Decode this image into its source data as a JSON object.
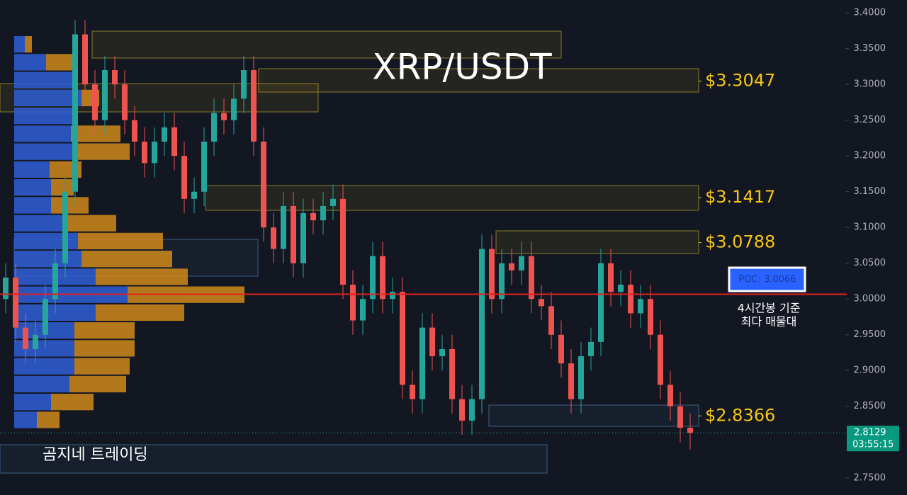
{
  "chart_data": {
    "type": "candlestick",
    "title": "XRP/USDT",
    "ylim": [
      2.726,
      3.418
    ],
    "yticks": [
      {
        "value": 3.4,
        "label": "3.4000"
      },
      {
        "value": 3.35,
        "label": "3.3500"
      },
      {
        "value": 3.3,
        "label": "3.3000"
      },
      {
        "value": 3.25,
        "label": "3.2500"
      },
      {
        "value": 3.2,
        "label": "3.2000"
      },
      {
        "value": 3.15,
        "label": "3.1500"
      },
      {
        "value": 3.1,
        "label": "3.1000"
      },
      {
        "value": 3.05,
        "label": "3.0500"
      },
      {
        "value": 3,
        "label": "3.0000"
      },
      {
        "value": 2.95,
        "label": "2.9500"
      },
      {
        "value": 2.9,
        "label": "2.9000"
      },
      {
        "value": 2.85,
        "label": "2.8500"
      },
      {
        "value": 2.75,
        "label": "2.7500"
      }
    ],
    "up_color": "#26a69a",
    "down_color": "#ef5350",
    "open": [
      3.0,
      3.03,
      2.96,
      2.93,
      2.95,
      3.0,
      3.05,
      3.15,
      3.37,
      3.3,
      3.25,
      3.32,
      3.3,
      3.25,
      3.22,
      3.19,
      3.22,
      3.24,
      3.2,
      3.14,
      3.15,
      3.22,
      3.26,
      3.25,
      3.28,
      3.32,
      3.22,
      3.1,
      3.07,
      3.13,
      3.05,
      3.12,
      3.11,
      3.13,
      3.14,
      3.02,
      2.97,
      3.0,
      3.06,
      3.0,
      3.01,
      2.88,
      2.86,
      2.96,
      2.92,
      2.93,
      2.86,
      2.83,
      2.86,
      3.07,
      3.0,
      3.05,
      3.04,
      3.06,
      3.0,
      2.99,
      2.95,
      2.91,
      2.86,
      2.92,
      2.94,
      3.05,
      3.01,
      3.02,
      2.98,
      3.0,
      2.95,
      2.88,
      2.85,
      2.82
    ],
    "high": [
      3.05,
      3.05,
      2.98,
      2.97,
      3.02,
      3.07,
      3.17,
      3.39,
      3.39,
      3.32,
      3.34,
      3.34,
      3.32,
      3.27,
      3.24,
      3.24,
      3.26,
      3.26,
      3.22,
      3.17,
      3.24,
      3.28,
      3.28,
      3.3,
      3.34,
      3.34,
      3.24,
      3.12,
      3.15,
      3.15,
      3.14,
      3.14,
      3.15,
      3.16,
      3.16,
      3.04,
      3.02,
      3.08,
      3.08,
      3.03,
      3.03,
      2.9,
      2.98,
      2.98,
      2.95,
      2.95,
      2.88,
      2.88,
      3.09,
      3.09,
      3.07,
      3.07,
      3.08,
      3.08,
      3.02,
      3.01,
      2.97,
      2.93,
      2.94,
      2.96,
      3.07,
      3.07,
      3.04,
      3.04,
      3.02,
      3.02,
      2.97,
      2.9,
      2.87,
      2.84
    ],
    "low": [
      2.98,
      2.94,
      2.91,
      2.91,
      2.93,
      2.98,
      3.03,
      3.13,
      3.28,
      3.23,
      3.23,
      3.28,
      3.23,
      3.2,
      3.17,
      3.17,
      3.2,
      3.18,
      3.12,
      3.12,
      3.13,
      3.2,
      3.23,
      3.23,
      3.26,
      3.2,
      3.08,
      3.05,
      3.05,
      3.03,
      3.03,
      3.09,
      3.09,
      3.11,
      3.0,
      2.95,
      2.95,
      2.98,
      2.98,
      2.98,
      2.86,
      2.84,
      2.84,
      2.9,
      2.9,
      2.84,
      2.81,
      2.81,
      2.84,
      2.98,
      2.98,
      3.02,
      3.02,
      2.98,
      2.97,
      2.93,
      2.89,
      2.84,
      2.84,
      2.9,
      2.92,
      2.99,
      2.99,
      2.96,
      2.96,
      2.93,
      2.86,
      2.83,
      2.8,
      2.79
    ],
    "close": [
      3.03,
      2.96,
      2.93,
      2.95,
      3.0,
      3.05,
      3.15,
      3.37,
      3.3,
      3.25,
      3.32,
      3.3,
      3.25,
      3.22,
      3.19,
      3.22,
      3.24,
      3.2,
      3.14,
      3.15,
      3.22,
      3.26,
      3.25,
      3.28,
      3.32,
      3.22,
      3.1,
      3.07,
      3.13,
      3.05,
      3.12,
      3.11,
      3.13,
      3.14,
      3.02,
      2.97,
      3.0,
      3.06,
      3.0,
      3.01,
      2.88,
      2.86,
      2.96,
      2.92,
      2.93,
      2.86,
      2.83,
      2.86,
      3.07,
      3.0,
      3.05,
      3.04,
      3.06,
      3.0,
      2.99,
      2.95,
      2.91,
      2.86,
      2.92,
      2.94,
      3.05,
      3.01,
      3.02,
      2.98,
      3.0,
      2.95,
      2.88,
      2.85,
      2.82,
      2.8129
    ],
    "volume_profile": {
      "price": [
        3.356,
        3.331,
        3.306,
        3.281,
        3.256,
        3.231,
        3.206,
        3.181,
        3.156,
        3.131,
        3.106,
        3.081,
        3.056,
        3.031,
        3.006,
        2.981,
        2.956,
        2.931,
        2.906,
        2.881,
        2.856,
        2.831
      ],
      "up": [
        15,
        45,
        85,
        95,
        90,
        80,
        85,
        50,
        52,
        52,
        72,
        90,
        95,
        115,
        160,
        115,
        85,
        85,
        85,
        78,
        52,
        32
      ],
      "down": [
        10,
        40,
        0,
        25,
        0,
        70,
        78,
        45,
        32,
        53,
        72,
        120,
        128,
        130,
        165,
        125,
        85,
        85,
        78,
        80,
        60,
        32
      ],
      "up_color": "#2f5fd6",
      "down_color": "#d08a1a"
    },
    "levels": [
      {
        "value": 3.3047,
        "label": "$3.3047"
      },
      {
        "value": 3.1417,
        "label": "$3.1417"
      },
      {
        "value": 3.0788,
        "label": "$3.0788"
      },
      {
        "value": 2.8366,
        "label": "$2.8366"
      }
    ],
    "poc": {
      "value": 3.0066,
      "label": "POC: 3.0066",
      "note": [
        "4시간봉 기준",
        "최다 매물대"
      ]
    },
    "last_price": {
      "value": 2.8129,
      "label": "2.8129",
      "countdown": "03:55:15"
    },
    "watermark": "곰지네 트레이딩"
  }
}
